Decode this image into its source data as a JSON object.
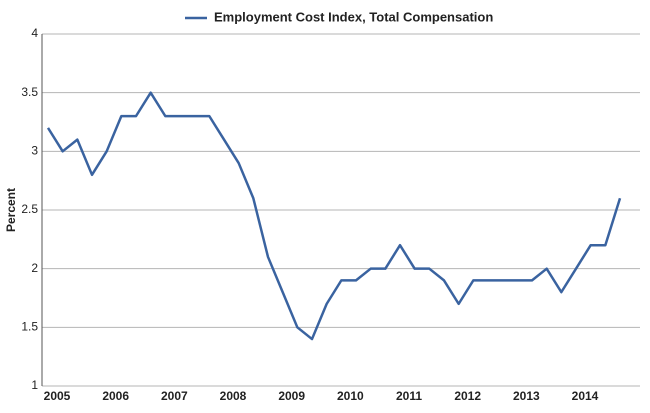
{
  "chart_data": {
    "type": "line",
    "categories": [
      "2005",
      null,
      null,
      null,
      "2006",
      null,
      null,
      null,
      "2007",
      null,
      null,
      null,
      "2008",
      null,
      null,
      null,
      "2009",
      null,
      null,
      null,
      "2010",
      null,
      null,
      null,
      "2011",
      null,
      null,
      null,
      "2012",
      null,
      null,
      null,
      "2013",
      null,
      null,
      null,
      "2014",
      null,
      null,
      null
    ],
    "series": [
      {
        "name": "Employment Cost Index, Total Compensation",
        "color": "#3a63a0",
        "values": [
          3.2,
          3.0,
          3.1,
          2.8,
          3.0,
          3.3,
          3.3,
          3.5,
          3.3,
          3.3,
          3.3,
          3.3,
          3.1,
          2.9,
          2.6,
          2.1,
          1.8,
          1.5,
          1.4,
          1.7,
          1.9,
          1.9,
          2.0,
          2.0,
          2.2,
          2.0,
          2.0,
          1.9,
          1.7,
          1.9,
          1.9,
          1.9,
          1.9,
          1.9,
          2.0,
          1.8,
          2.0,
          2.2,
          2.2,
          2.6
        ]
      }
    ],
    "y_label": "Percent",
    "ylim": [
      1,
      4
    ],
    "yticks": [
      1,
      1.5,
      2,
      2.5,
      3,
      3.5,
      4
    ],
    "grid": true
  }
}
